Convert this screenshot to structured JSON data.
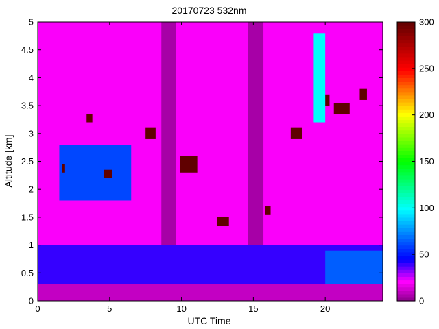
{
  "chart_data": {
    "type": "heatmap",
    "title": "20170723 532nm",
    "xlabel": "UTC Time",
    "ylabel": "Altitude [km]",
    "xlim": [
      0,
      24
    ],
    "ylim": [
      0,
      5
    ],
    "x_ticks": [
      0,
      5,
      10,
      15,
      20
    ],
    "x_tick_labels": [
      "0",
      "5",
      "10",
      "15",
      "20"
    ],
    "y_ticks": [
      0,
      0.5,
      1,
      1.5,
      2,
      2.5,
      3,
      3.5,
      4,
      4.5,
      5
    ],
    "y_tick_labels": [
      "0",
      "0.5",
      "1",
      "1.5",
      "2",
      "2.5",
      "3",
      "3.5",
      "4",
      "4.5",
      "5"
    ],
    "colorbar": {
      "range": [
        0,
        300
      ],
      "ticks": [
        0,
        50,
        100,
        150,
        200,
        250,
        300
      ],
      "tick_labels": [
        "0",
        "50",
        "100",
        "150",
        "200",
        "250",
        "300"
      ],
      "colormap": "hsv-like"
    },
    "background_level": 20,
    "data_gaps_utc": [
      [
        8.6,
        9.6
      ],
      [
        14.6,
        15.7
      ]
    ],
    "features": [
      {
        "name": "surface layer",
        "x": [
          0,
          24
        ],
        "y": [
          0,
          0.3
        ],
        "value": 10
      },
      {
        "name": "boundary layer aerosol",
        "x": [
          0,
          24
        ],
        "y": [
          0.3,
          1.0
        ],
        "value": 40
      },
      {
        "name": "elevated aerosol",
        "x": [
          1.5,
          6.5
        ],
        "y": [
          1.8,
          2.8
        ],
        "value": 60
      },
      {
        "name": "cloud",
        "x": [
          1.7,
          1.9
        ],
        "y": [
          2.3,
          2.45
        ],
        "value": 300
      },
      {
        "name": "cloud",
        "x": [
          3.4,
          3.8
        ],
        "y": [
          3.2,
          3.35
        ],
        "value": 300
      },
      {
        "name": "cloud",
        "x": [
          4.6,
          5.2
        ],
        "y": [
          2.2,
          2.35
        ],
        "value": 300
      },
      {
        "name": "cloud",
        "x": [
          7.5,
          8.2
        ],
        "y": [
          2.9,
          3.1
        ],
        "value": 300
      },
      {
        "name": "cloud",
        "x": [
          9.9,
          11.1
        ],
        "y": [
          2.3,
          2.6
        ],
        "value": 300
      },
      {
        "name": "cloud",
        "x": [
          12.5,
          13.3
        ],
        "y": [
          1.35,
          1.5
        ],
        "value": 300
      },
      {
        "name": "cloud",
        "x": [
          15.8,
          16.2
        ],
        "y": [
          1.55,
          1.7
        ],
        "value": 300
      },
      {
        "name": "cloud",
        "x": [
          17.6,
          18.4
        ],
        "y": [
          2.9,
          3.1
        ],
        "value": 300
      },
      {
        "name": "cloud",
        "x": [
          19.5,
          20.3
        ],
        "y": [
          3.5,
          3.7
        ],
        "value": 300
      },
      {
        "name": "cloud",
        "x": [
          20.6,
          21.7
        ],
        "y": [
          3.35,
          3.55
        ],
        "value": 300
      },
      {
        "name": "cloud",
        "x": [
          22.4,
          22.9
        ],
        "y": [
          3.6,
          3.8
        ],
        "value": 300
      },
      {
        "name": "aerosol plume",
        "x": [
          19.2,
          20.0
        ],
        "y": [
          3.2,
          4.8
        ],
        "value": 100
      },
      {
        "name": "aerosol plume",
        "x": [
          20.0,
          24.0
        ],
        "y": [
          0.3,
          0.9
        ],
        "value": 65
      }
    ]
  }
}
